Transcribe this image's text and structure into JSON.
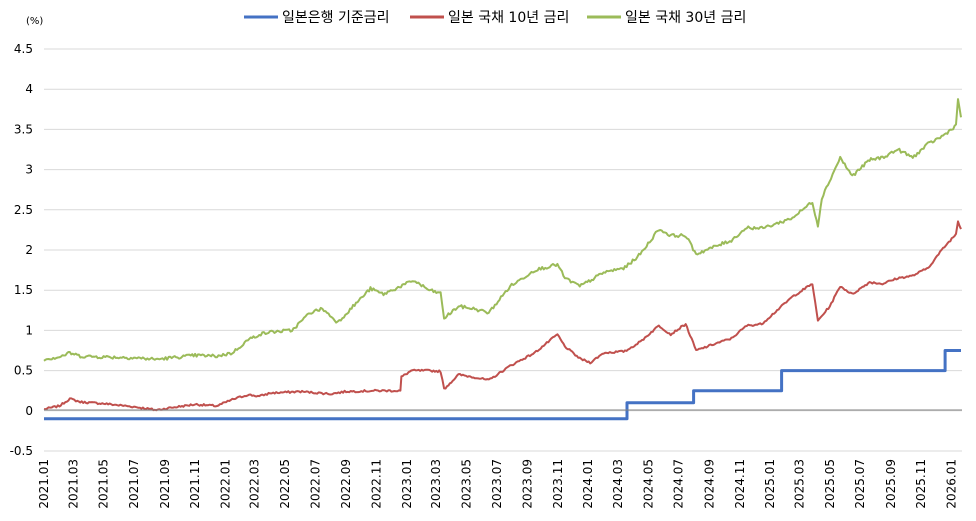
{
  "chart_data": {
    "type": "line",
    "unit_label": "(%)",
    "ylim": [
      -0.5,
      4.5
    ],
    "yticks": [
      "4.5",
      "4",
      "3.5",
      "3",
      "2.5",
      "2",
      "1.5",
      "1",
      "0.5",
      "0",
      "-0.5"
    ],
    "xticks": [
      "2021.01",
      "2021.03",
      "2021.05",
      "2021.07",
      "2021.09",
      "2021.11",
      "2022.01",
      "2022.03",
      "2022.05",
      "2022.07",
      "2022.09",
      "2022.11",
      "2023.01",
      "2023.03",
      "2023.05",
      "2023.07",
      "2023.09",
      "2023.11",
      "2024.01",
      "2024.03",
      "2024.05",
      "2024.07",
      "2024.09",
      "2024.11",
      "2025.01",
      "2025.03",
      "2025.05",
      "2025.07",
      "2025.09",
      "2025.11",
      "2026.01"
    ],
    "grid": true,
    "legend_position": "top",
    "series": [
      {
        "name": "일본은행 기준금리",
        "color": "#4472c4",
        "step": true,
        "points": [
          [
            "2021-01-01",
            -0.1
          ],
          [
            "2024-03-19",
            -0.1
          ],
          [
            "2024-03-19",
            0.1
          ],
          [
            "2024-07-31",
            0.1
          ],
          [
            "2024-07-31",
            0.25
          ],
          [
            "2025-01-24",
            0.25
          ],
          [
            "2025-01-24",
            0.5
          ],
          [
            "2025-12-19",
            0.5
          ],
          [
            "2025-12-19",
            0.75
          ],
          [
            "2026-01-20",
            0.75
          ]
        ]
      },
      {
        "name": "일본 국채 10년 금리",
        "color": "#c0504d",
        "points": [
          [
            "2021-01-01",
            0.02
          ],
          [
            "2021-02-01",
            0.06
          ],
          [
            "2021-02-22",
            0.15
          ],
          [
            "2021-03-15",
            0.11
          ],
          [
            "2021-05-01",
            0.09
          ],
          [
            "2021-07-01",
            0.05
          ],
          [
            "2021-08-15",
            0.01
          ],
          [
            "2021-09-15",
            0.04
          ],
          [
            "2021-11-01",
            0.08
          ],
          [
            "2021-12-15",
            0.06
          ],
          [
            "2022-01-15",
            0.14
          ],
          [
            "2022-02-15",
            0.2
          ],
          [
            "2022-03-10",
            0.18
          ],
          [
            "2022-04-01",
            0.22
          ],
          [
            "2022-06-01",
            0.24
          ],
          [
            "2022-08-01",
            0.21
          ],
          [
            "2022-09-01",
            0.24
          ],
          [
            "2022-11-01",
            0.25
          ],
          [
            "2022-12-19",
            0.25
          ],
          [
            "2022-12-21",
            0.42
          ],
          [
            "2023-01-10",
            0.5
          ],
          [
            "2023-02-15",
            0.5
          ],
          [
            "2023-03-10",
            0.49
          ],
          [
            "2023-03-17",
            0.27
          ],
          [
            "2023-04-15",
            0.45
          ],
          [
            "2023-05-15",
            0.42
          ],
          [
            "2023-06-15",
            0.38
          ],
          [
            "2023-07-28",
            0.56
          ],
          [
            "2023-08-15",
            0.62
          ],
          [
            "2023-09-15",
            0.72
          ],
          [
            "2023-10-31",
            0.95
          ],
          [
            "2023-11-15",
            0.8
          ],
          [
            "2023-12-15",
            0.65
          ],
          [
            "2024-01-05",
            0.6
          ],
          [
            "2024-02-01",
            0.72
          ],
          [
            "2024-03-15",
            0.74
          ],
          [
            "2024-04-15",
            0.86
          ],
          [
            "2024-05-22",
            1.06
          ],
          [
            "2024-06-15",
            0.95
          ],
          [
            "2024-07-15",
            1.08
          ],
          [
            "2024-08-05",
            0.75
          ],
          [
            "2024-09-15",
            0.84
          ],
          [
            "2024-10-15",
            0.9
          ],
          [
            "2024-11-15",
            1.06
          ],
          [
            "2024-12-15",
            1.08
          ],
          [
            "2025-01-15",
            1.25
          ],
          [
            "2025-02-15",
            1.42
          ],
          [
            "2025-03-27",
            1.58
          ],
          [
            "2025-04-07",
            1.12
          ],
          [
            "2025-05-01",
            1.3
          ],
          [
            "2025-05-22",
            1.55
          ],
          [
            "2025-06-15",
            1.45
          ],
          [
            "2025-07-20",
            1.6
          ],
          [
            "2025-08-15",
            1.58
          ],
          [
            "2025-09-15",
            1.65
          ],
          [
            "2025-10-15",
            1.68
          ],
          [
            "2025-11-15",
            1.78
          ],
          [
            "2025-12-15",
            2.02
          ],
          [
            "2026-01-10",
            2.2
          ],
          [
            "2026-01-14",
            2.36
          ],
          [
            "2026-01-20",
            2.26
          ]
        ]
      },
      {
        "name": "일본 국채 30년 금리",
        "color": "#9bbb59",
        "points": [
          [
            "2021-01-01",
            0.64
          ],
          [
            "2021-02-01",
            0.67
          ],
          [
            "2021-02-22",
            0.72
          ],
          [
            "2021-03-15",
            0.68
          ],
          [
            "2021-05-01",
            0.67
          ],
          [
            "2021-07-01",
            0.66
          ],
          [
            "2021-08-15",
            0.64
          ],
          [
            "2021-09-15",
            0.66
          ],
          [
            "2021-11-01",
            0.69
          ],
          [
            "2021-12-15",
            0.68
          ],
          [
            "2022-01-15",
            0.72
          ],
          [
            "2022-02-15",
            0.88
          ],
          [
            "2022-03-10",
            0.95
          ],
          [
            "2022-04-01",
            0.98
          ],
          [
            "2022-05-15",
            1.0
          ],
          [
            "2022-06-20",
            1.22
          ],
          [
            "2022-07-15",
            1.27
          ],
          [
            "2022-08-15",
            1.1
          ],
          [
            "2022-09-15",
            1.3
          ],
          [
            "2022-10-20",
            1.52
          ],
          [
            "2022-11-15",
            1.45
          ],
          [
            "2022-12-20",
            1.55
          ],
          [
            "2023-01-15",
            1.62
          ],
          [
            "2023-02-15",
            1.5
          ],
          [
            "2023-03-10",
            1.46
          ],
          [
            "2023-03-17",
            1.15
          ],
          [
            "2023-04-15",
            1.3
          ],
          [
            "2023-05-15",
            1.27
          ],
          [
            "2023-06-15",
            1.22
          ],
          [
            "2023-07-28",
            1.55
          ],
          [
            "2023-08-15",
            1.62
          ],
          [
            "2023-09-15",
            1.75
          ],
          [
            "2023-10-31",
            1.82
          ],
          [
            "2023-11-15",
            1.65
          ],
          [
            "2023-12-15",
            1.55
          ],
          [
            "2024-01-05",
            1.62
          ],
          [
            "2024-02-01",
            1.72
          ],
          [
            "2024-03-15",
            1.78
          ],
          [
            "2024-04-15",
            1.95
          ],
          [
            "2024-05-22",
            2.26
          ],
          [
            "2024-06-15",
            2.18
          ],
          [
            "2024-07-15",
            2.18
          ],
          [
            "2024-08-05",
            1.95
          ],
          [
            "2024-09-15",
            2.05
          ],
          [
            "2024-10-15",
            2.12
          ],
          [
            "2024-11-15",
            2.28
          ],
          [
            "2024-12-15",
            2.27
          ],
          [
            "2025-01-15",
            2.33
          ],
          [
            "2025-02-15",
            2.4
          ],
          [
            "2025-03-27",
            2.6
          ],
          [
            "2025-04-07",
            2.3
          ],
          [
            "2025-04-15",
            2.65
          ],
          [
            "2025-05-22",
            3.15
          ],
          [
            "2025-06-15",
            2.92
          ],
          [
            "2025-07-20",
            3.12
          ],
          [
            "2025-08-15",
            3.15
          ],
          [
            "2025-09-15",
            3.25
          ],
          [
            "2025-10-15",
            3.15
          ],
          [
            "2025-11-15",
            3.32
          ],
          [
            "2025-12-15",
            3.42
          ],
          [
            "2026-01-10",
            3.55
          ],
          [
            "2026-01-14",
            3.88
          ],
          [
            "2026-01-20",
            3.65
          ]
        ]
      }
    ]
  }
}
